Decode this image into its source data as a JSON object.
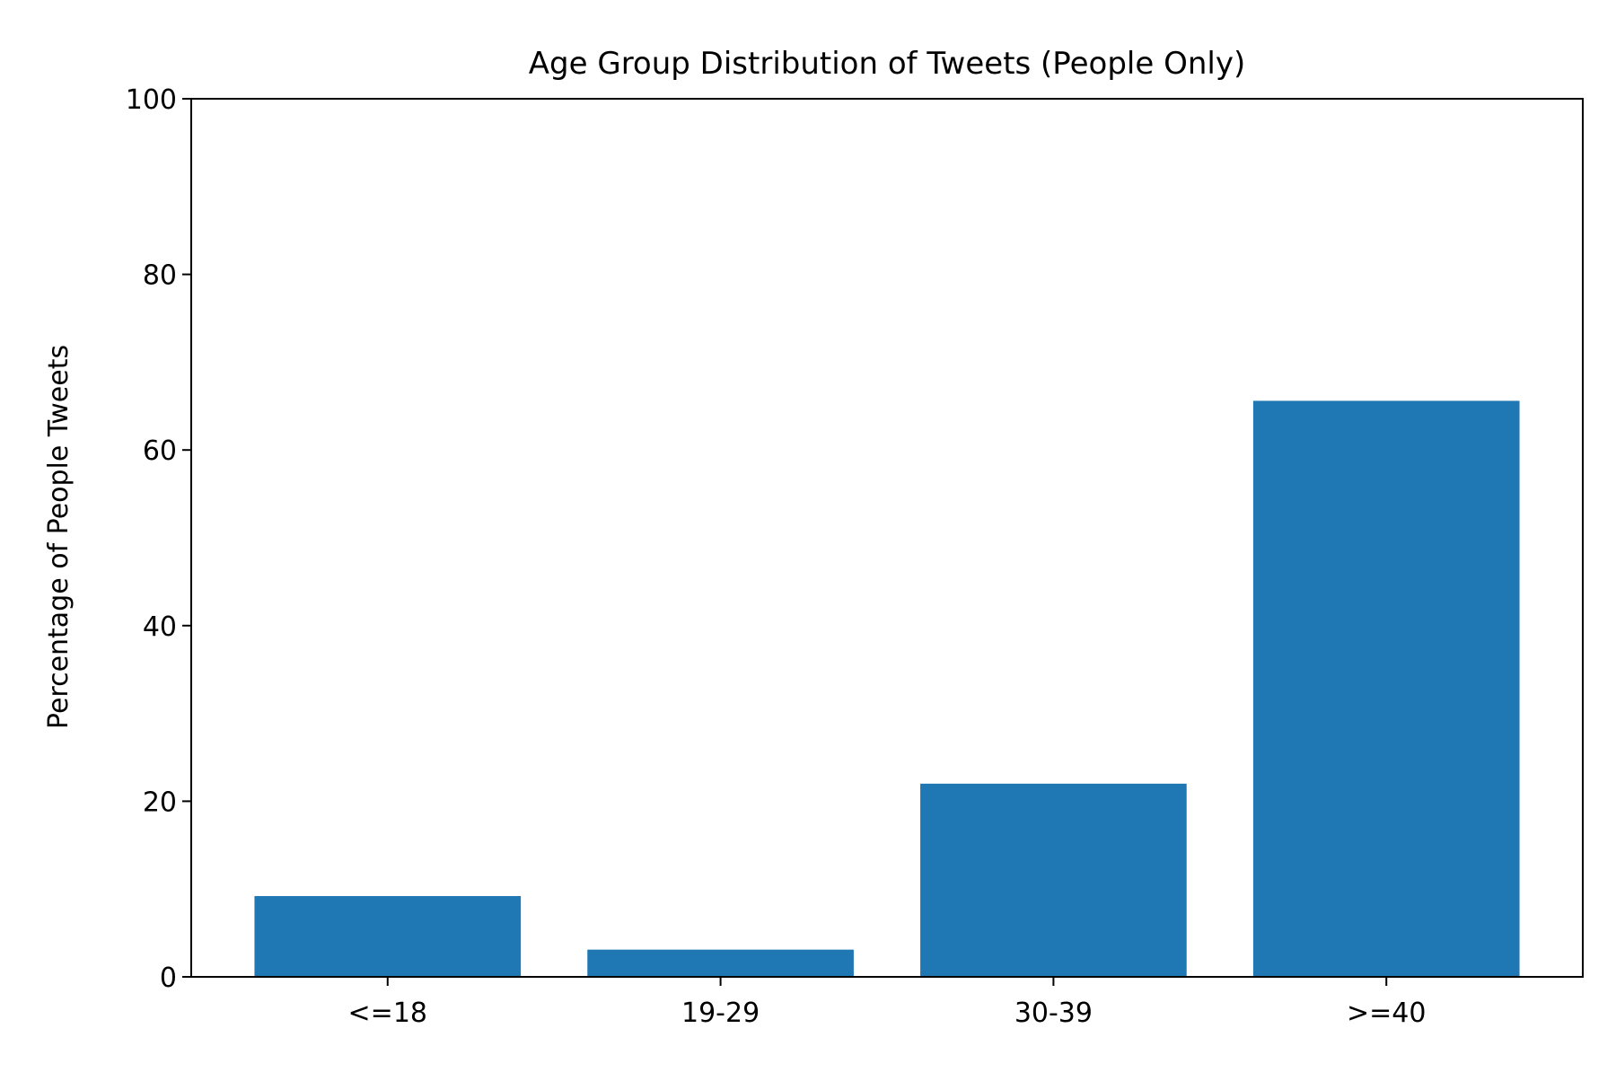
{
  "chart_data": {
    "type": "bar",
    "title": "Age Group Distribution of Tweets (People Only)",
    "xlabel": "",
    "ylabel": "Percentage of People Tweets",
    "categories": [
      "<=18",
      "19-29",
      "30-39",
      ">=40"
    ],
    "values": [
      9.2,
      3.1,
      22.0,
      65.6
    ],
    "ylim": [
      0,
      100
    ],
    "yticks": [
      "0",
      "20",
      "40",
      "60",
      "80",
      "100"
    ],
    "grid": false,
    "legend": "none",
    "bar_color": "#1f77b4"
  }
}
